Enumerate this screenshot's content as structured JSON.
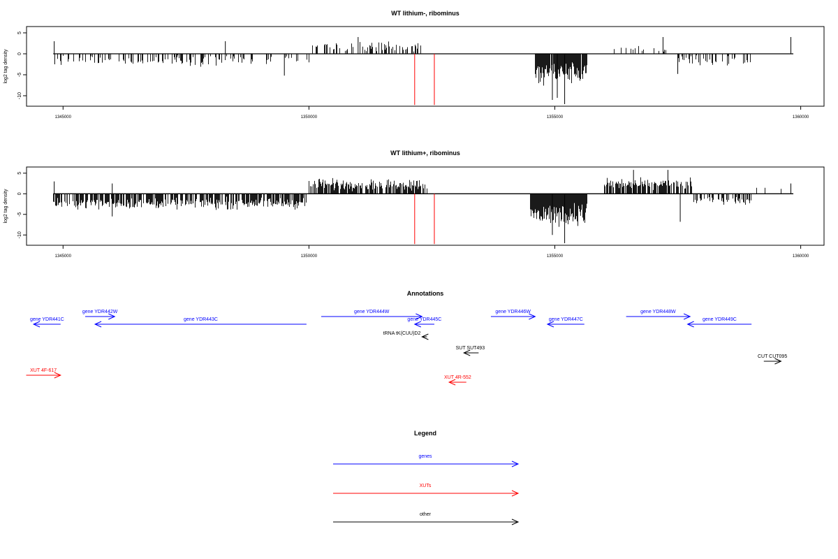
{
  "chart_data": [
    {
      "type": "bar",
      "title": "WT lithium-, ribominus",
      "xlabel": "",
      "ylabel": "log2 tag density",
      "xlim": [
        1343600,
        1360600
      ],
      "ylim": [
        -12.5,
        6.5
      ],
      "xticks": [
        1345000,
        1350000,
        1355000,
        1360000
      ],
      "yticks": [
        5,
        0,
        -5,
        -10
      ],
      "xtick_labels": [
        "1345000",
        "1350000",
        "1355000",
        "1360000"
      ],
      "ytick_labels": [
        "5",
        "0",
        "-5",
        "-10"
      ],
      "colors": {
        "bars": "#000000",
        "markers": "#ff0000"
      },
      "segments": [
        {
          "x_start": 1344800,
          "x_end": 1350050,
          "density": 0.3,
          "mean": -1.6,
          "spread": 1.6
        },
        {
          "x_start": 1350050,
          "x_end": 1352300,
          "density": 0.32,
          "mean": 1.6,
          "spread": 1.4
        },
        {
          "x_start": 1353200,
          "x_end": 1353600,
          "density": 0.02,
          "mean": -0.6,
          "spread": 0.5
        },
        {
          "x_start": 1354600,
          "x_end": 1355650,
          "density": 0.95,
          "mean": -4.5,
          "spread": 3.2
        },
        {
          "x_start": 1356200,
          "x_end": 1357500,
          "density": 0.1,
          "mean": 1.0,
          "spread": 1.0
        },
        {
          "x_start": 1357500,
          "x_end": 1359000,
          "density": 0.3,
          "mean": -1.6,
          "spread": 1.4
        },
        {
          "x_start": 1359700,
          "x_end": 1359850,
          "density": 0.05,
          "mean": 2.8,
          "spread": 0.8
        }
      ],
      "spikes": [
        {
          "x": 1344820,
          "y": 3.0
        },
        {
          "x": 1344830,
          "y": -2.5
        },
        {
          "x": 1348300,
          "y": 3.0
        },
        {
          "x": 1349500,
          "y": -5.2
        },
        {
          "x": 1351000,
          "y": 4.0
        },
        {
          "x": 1355200,
          "y": -12.0
        },
        {
          "x": 1354950,
          "y": -11.0
        },
        {
          "x": 1355050,
          "y": -10.5
        },
        {
          "x": 1357200,
          "y": 4.0
        },
        {
          "x": 1357500,
          "y": -4.8
        },
        {
          "x": 1359800,
          "y": 4.0
        }
      ],
      "markers": [
        1352150,
        1352550
      ]
    },
    {
      "type": "bar",
      "title": "WT lithium+, ribominus",
      "xlabel": "",
      "ylabel": "log2 tag density",
      "xlim": [
        1343600,
        1360600
      ],
      "ylim": [
        -12.5,
        6.5
      ],
      "xticks": [
        1345000,
        1350000,
        1355000,
        1360000
      ],
      "yticks": [
        5,
        0,
        -5,
        -10
      ],
      "xtick_labels": [
        "1345000",
        "1350000",
        "1355000",
        "1360000"
      ],
      "ytick_labels": [
        "5",
        "0",
        "-5",
        "-10"
      ],
      "colors": {
        "bars": "#000000",
        "markers": "#ff0000"
      },
      "segments": [
        {
          "x_start": 1344800,
          "x_end": 1349950,
          "density": 0.75,
          "mean": -2.3,
          "spread": 1.7
        },
        {
          "x_start": 1350000,
          "x_end": 1352400,
          "density": 0.75,
          "mean": 2.3,
          "spread": 1.6
        },
        {
          "x_start": 1353000,
          "x_end": 1353400,
          "density": 0.06,
          "mean": -1.0,
          "spread": 0.8
        },
        {
          "x_start": 1354500,
          "x_end": 1355650,
          "density": 1.0,
          "mean": -5.0,
          "spread": 3.3
        },
        {
          "x_start": 1356000,
          "x_end": 1357800,
          "density": 0.75,
          "mean": 2.3,
          "spread": 1.6
        },
        {
          "x_start": 1357800,
          "x_end": 1359000,
          "density": 0.45,
          "mean": -1.6,
          "spread": 1.2
        },
        {
          "x_start": 1359000,
          "x_end": 1359800,
          "density": 0.05,
          "mean": 1.5,
          "spread": 1.0
        }
      ],
      "spikes": [
        {
          "x": 1344820,
          "y": 3.0
        },
        {
          "x": 1346000,
          "y": 2.5
        },
        {
          "x": 1346000,
          "y": -5.5
        },
        {
          "x": 1355200,
          "y": -12.0
        },
        {
          "x": 1354950,
          "y": -10.0
        },
        {
          "x": 1356600,
          "y": 5.8
        },
        {
          "x": 1357300,
          "y": 5.8
        },
        {
          "x": 1357550,
          "y": -6.8
        },
        {
          "x": 1359800,
          "y": 2.5
        }
      ],
      "markers": [
        1352150,
        1352550
      ]
    },
    {
      "type": "annotation-track",
      "title": "Annotations",
      "xlim": [
        1343600,
        1360600
      ],
      "features": [
        {
          "label": "gene YDR441C",
          "start": 1344950,
          "end": 1344400,
          "row": 1,
          "color": "#0000ff"
        },
        {
          "label": "gene YDR442W",
          "start": 1345450,
          "end": 1346050,
          "row": 0,
          "color": "#0000ff"
        },
        {
          "label": "gene YDR443C",
          "start": 1349950,
          "end": 1345650,
          "row": 1,
          "color": "#0000ff"
        },
        {
          "label": "gene YDR444W",
          "start": 1350250,
          "end": 1352300,
          "row": 0,
          "color": "#0000ff"
        },
        {
          "label": "gene YDR445C",
          "start": 1352550,
          "end": 1352150,
          "row": 1,
          "color": "#0000ff"
        },
        {
          "label": "gene YDR446W",
          "start": 1353700,
          "end": 1354600,
          "row": 0,
          "color": "#0000ff"
        },
        {
          "label": "gene YDR447C",
          "start": 1355600,
          "end": 1354850,
          "row": 1,
          "color": "#0000ff"
        },
        {
          "label": "gene YDR448W",
          "start": 1356450,
          "end": 1357750,
          "row": 0,
          "color": "#0000ff"
        },
        {
          "label": "gene YDR449C",
          "start": 1359000,
          "end": 1357700,
          "row": 1,
          "color": "#0000ff"
        },
        {
          "label": "tRNA tK(CUU)D2",
          "start": 1352400,
          "end": 1352300,
          "row": 2,
          "color": "#000000"
        },
        {
          "label": "SUT SUT493",
          "start": 1353450,
          "end": 1353150,
          "row": 3,
          "color": "#000000"
        },
        {
          "label": "CUT CUT095",
          "start": 1359250,
          "end": 1359600,
          "row": 4,
          "color": "#000000"
        },
        {
          "label": "XUT 4F-617",
          "start": 1344250,
          "end": 1344950,
          "row": 5,
          "color": "#ff0000"
        },
        {
          "label": "XUT 4R-552",
          "start": 1353200,
          "end": 1352850,
          "row": 6,
          "color": "#ff0000"
        }
      ]
    },
    {
      "type": "legend",
      "title": "Legend",
      "entries": [
        {
          "label": "genes",
          "color": "#0000ff"
        },
        {
          "label": "XUTs",
          "color": "#ff0000"
        },
        {
          "label": "other",
          "color": "#000000"
        }
      ]
    }
  ]
}
